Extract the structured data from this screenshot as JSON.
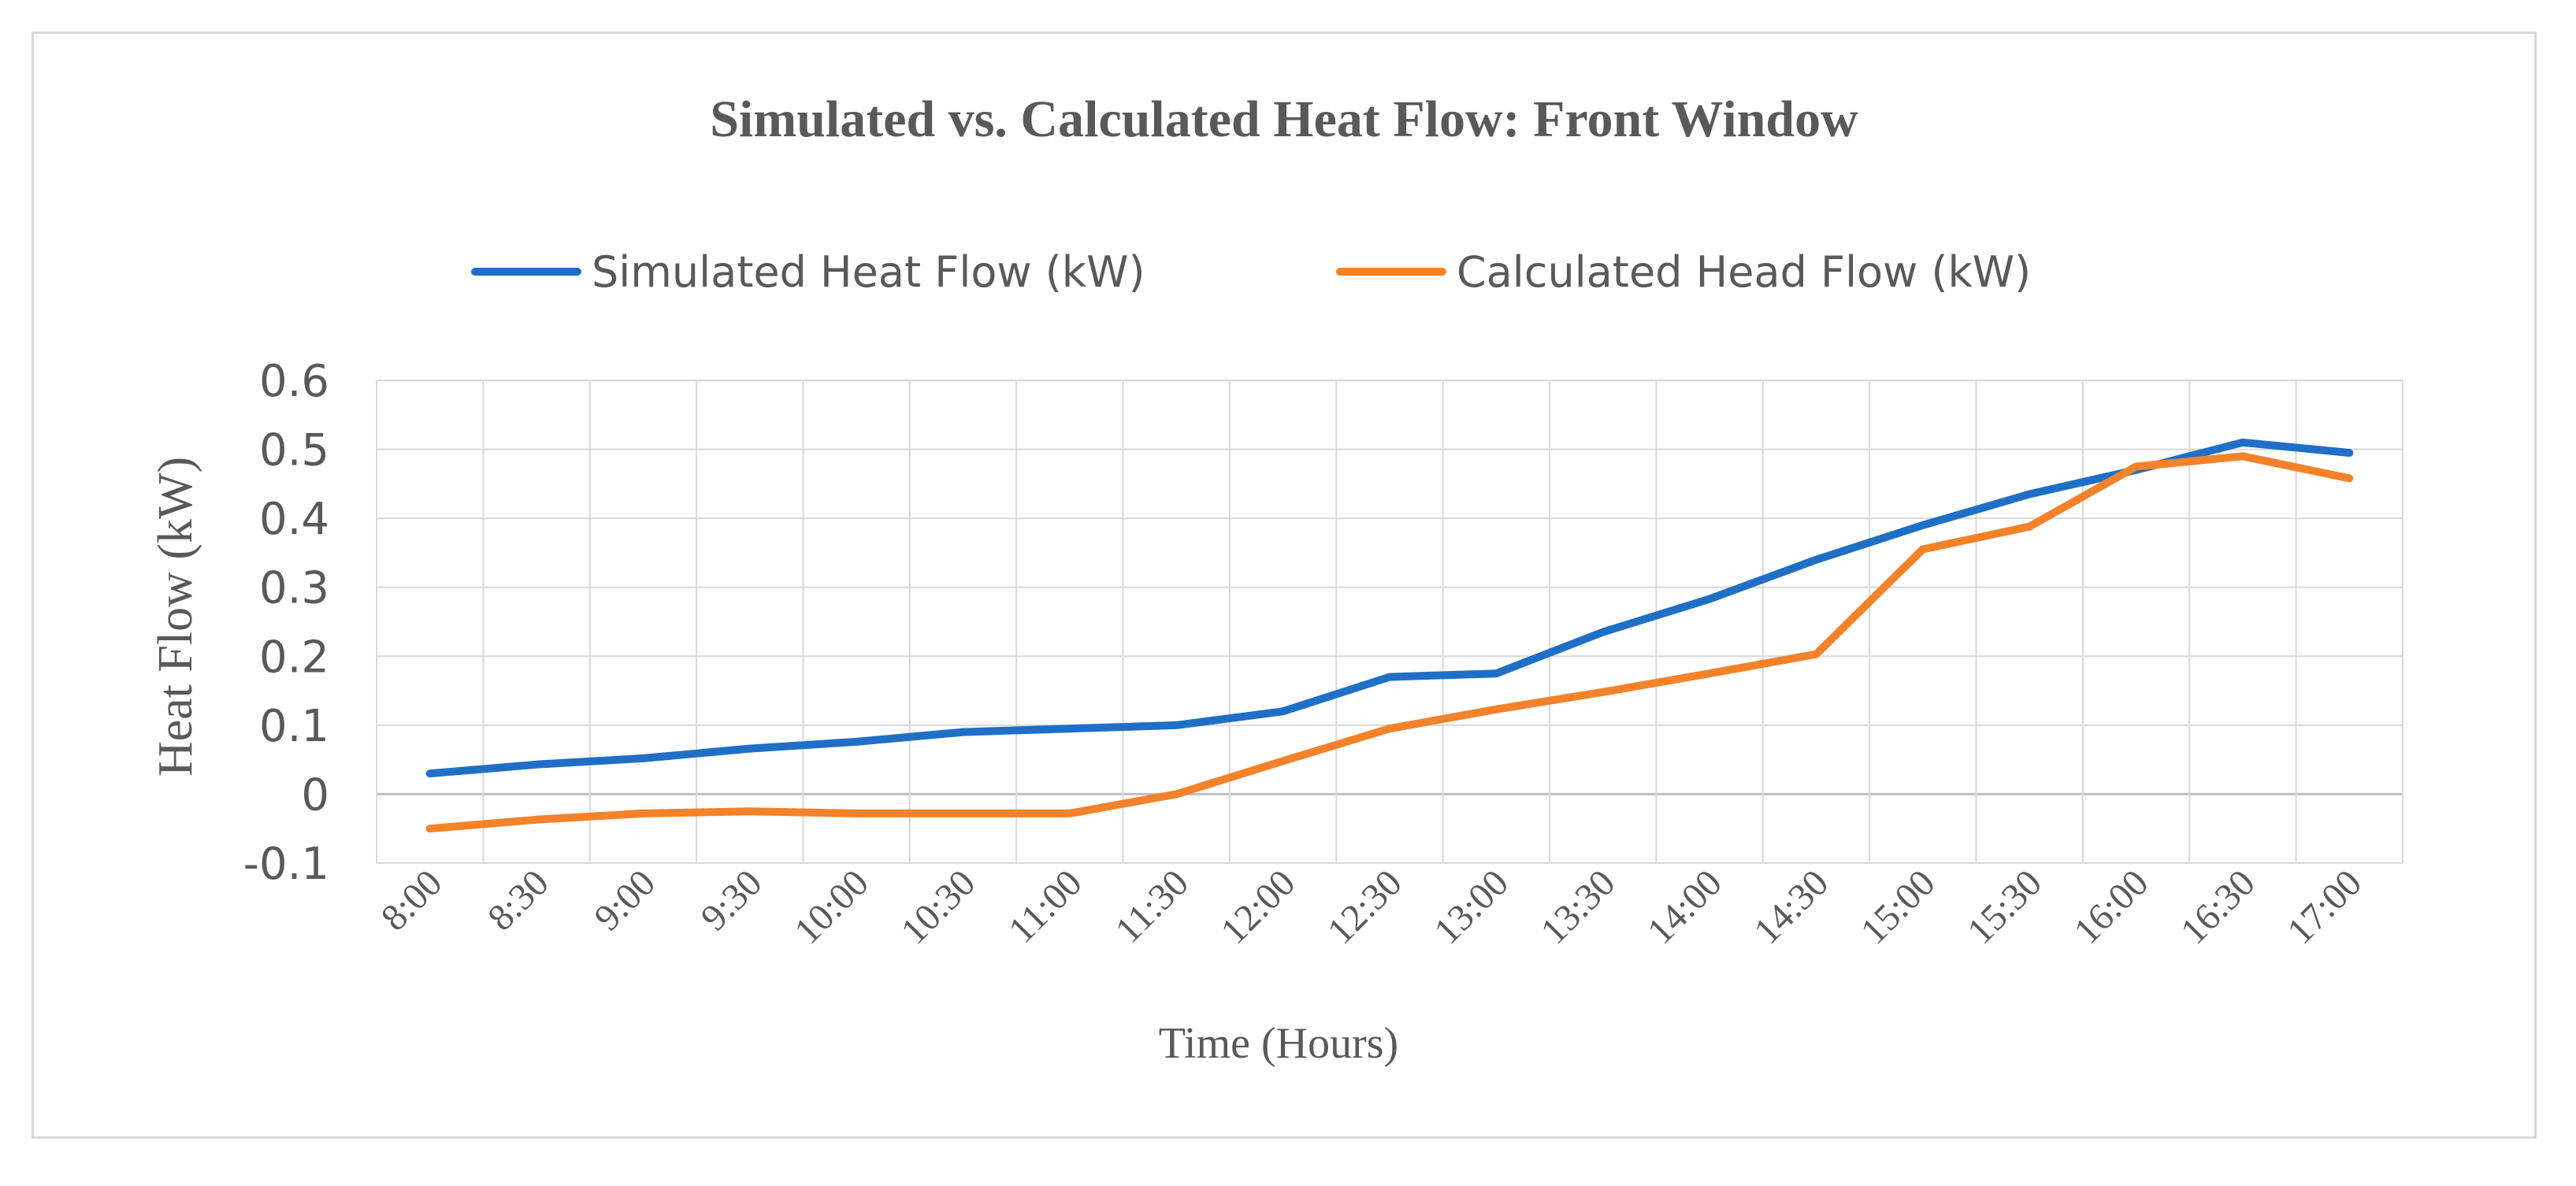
{
  "chart_data": {
    "type": "line",
    "title": "Simulated vs. Calculated Heat Flow: Front Window",
    "xlabel": "Time (Hours)",
    "ylabel": "Heat Flow (kW)",
    "ylim": [
      -0.1,
      0.6
    ],
    "yticks": [
      "-0.1",
      "0",
      "0.1",
      "0.2",
      "0.3",
      "0.4",
      "0.5",
      "0.6"
    ],
    "categories": [
      "8:00",
      "8:30",
      "9:00",
      "9:30",
      "10:00",
      "10:30",
      "11:00",
      "11:30",
      "12:00",
      "12:30",
      "13:00",
      "13:30",
      "14:00",
      "14:30",
      "15:00",
      "15:30",
      "16:00",
      "16:30",
      "17:00"
    ],
    "grid": true,
    "legend_position": "top",
    "series": [
      {
        "name": "Simulated Heat Flow (kW)",
        "color": "#1f6fc7",
        "values": [
          0.03,
          0.043,
          0.052,
          0.066,
          0.076,
          0.09,
          0.095,
          0.1,
          0.12,
          0.17,
          0.175,
          0.235,
          0.283,
          0.34,
          0.39,
          0.435,
          0.47,
          0.51,
          0.495
        ]
      },
      {
        "name": "Calculated Head Flow (kW)",
        "color": "#f4822a",
        "values": [
          -0.05,
          -0.037,
          -0.028,
          -0.025,
          -0.028,
          -0.028,
          -0.028,
          0.0,
          0.048,
          0.095,
          0.123,
          0.148,
          0.175,
          0.203,
          0.355,
          0.388,
          0.475,
          0.49,
          0.458
        ]
      }
    ]
  }
}
